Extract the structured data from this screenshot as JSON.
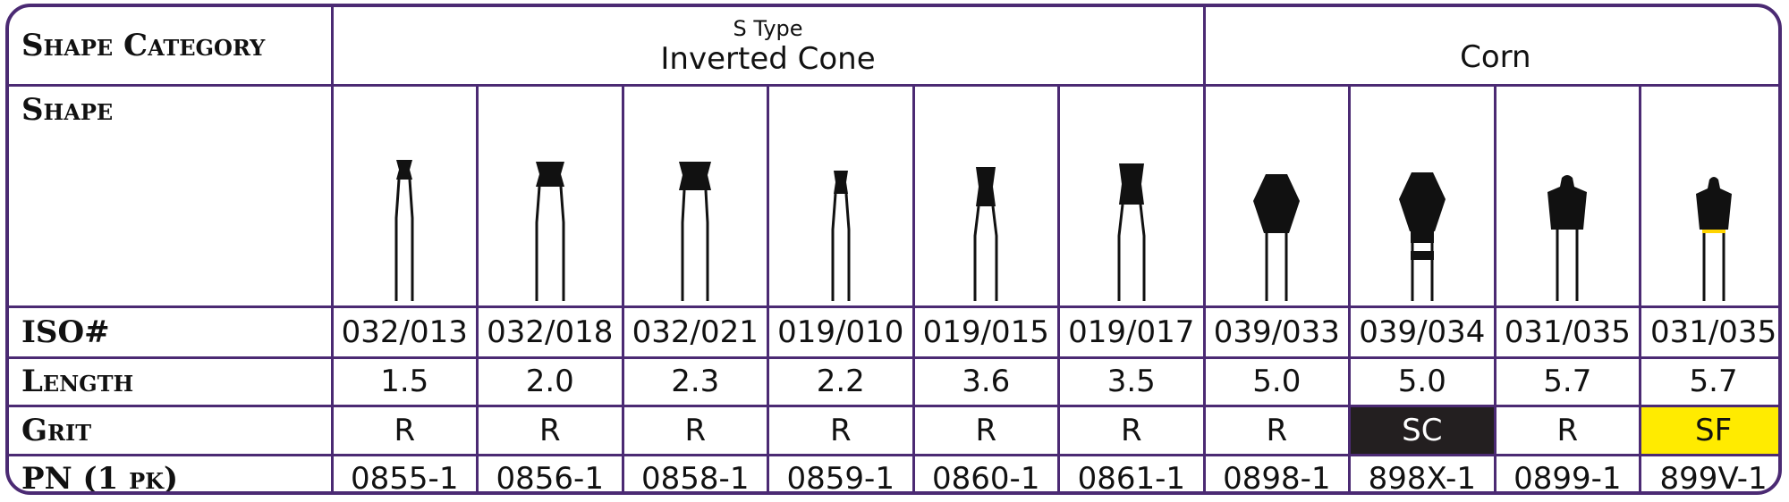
{
  "labels": {
    "shape_category": "Shape Category",
    "shape": "Shape",
    "iso": "ISO#",
    "length": "Length",
    "grit": "Grit",
    "pn": "PN (1 pk)"
  },
  "categories": {
    "inverted_cone": {
      "type": "S Type",
      "name": "Inverted Cone"
    },
    "corn": {
      "name": "Corn"
    }
  },
  "products": [
    {
      "iso": "032/013",
      "length": "1.5",
      "grit": "R",
      "pn": "0855-1",
      "shape": "inverted-cone-icon",
      "grit_color": "#ffffff"
    },
    {
      "iso": "032/018",
      "length": "2.0",
      "grit": "R",
      "pn": "0856-1",
      "shape": "inverted-cone-icon",
      "grit_color": "#ffffff"
    },
    {
      "iso": "032/021",
      "length": "2.3",
      "grit": "R",
      "pn": "0858-1",
      "shape": "inverted-cone-icon",
      "grit_color": "#ffffff"
    },
    {
      "iso": "019/010",
      "length": "2.2",
      "grit": "R",
      "pn": "0859-1",
      "shape": "inverted-cone-icon",
      "grit_color": "#ffffff"
    },
    {
      "iso": "019/015",
      "length": "3.6",
      "grit": "R",
      "pn": "0860-1",
      "shape": "inverted-cone-icon",
      "grit_color": "#ffffff"
    },
    {
      "iso": "019/017",
      "length": "3.5",
      "grit": "R",
      "pn": "0861-1",
      "shape": "inverted-cone-icon",
      "grit_color": "#ffffff"
    },
    {
      "iso": "039/033",
      "length": "5.0",
      "grit": "R",
      "pn": "0898-1",
      "shape": "corn-bur-icon",
      "grit_color": "#ffffff"
    },
    {
      "iso": "039/034",
      "length": "5.0",
      "grit": "SC",
      "pn": "898X-1",
      "shape": "corn-bur-icon",
      "grit_color": "#231f20"
    },
    {
      "iso": "031/035",
      "length": "5.7",
      "grit": "R",
      "pn": "0899-1",
      "shape": "corn-bur-icon",
      "grit_color": "#ffffff"
    },
    {
      "iso": "031/035",
      "length": "5.7",
      "grit": "SF",
      "pn": "899V-1",
      "shape": "corn-bur-icon",
      "grit_color": "#ffeb00"
    }
  ],
  "colors": {
    "border": "#4b2a73",
    "dark_grit": "#231f20",
    "yellow_grit": "#ffeb00"
  }
}
